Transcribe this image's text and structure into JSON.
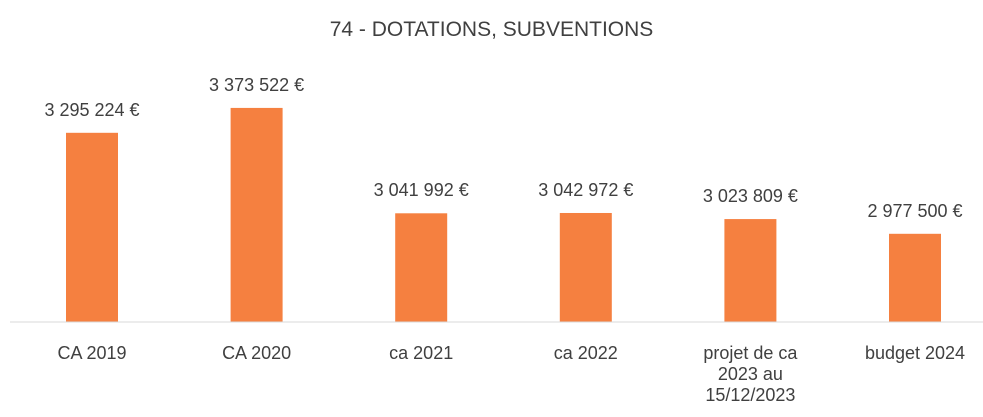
{
  "chart_data": {
    "type": "bar",
    "title": "74 - DOTATIONS, SUBVENTIONS",
    "categories": [
      "CA 2019",
      "CA 2020",
      "ca 2021",
      "ca 2022",
      "projet de ca 2023 au 15/12/2023",
      "budget 2024"
    ],
    "values": [
      3295224,
      3373522,
      3041992,
      3042972,
      3023809,
      2977500
    ],
    "value_labels": [
      "3 295 224 €",
      "3 373 522 €",
      "3 041 992 €",
      "3 042 972 €",
      "3 023 809 €",
      "2 977 500 €"
    ],
    "color": "#f58040",
    "ylim": [
      2700000,
      3400000
    ]
  }
}
